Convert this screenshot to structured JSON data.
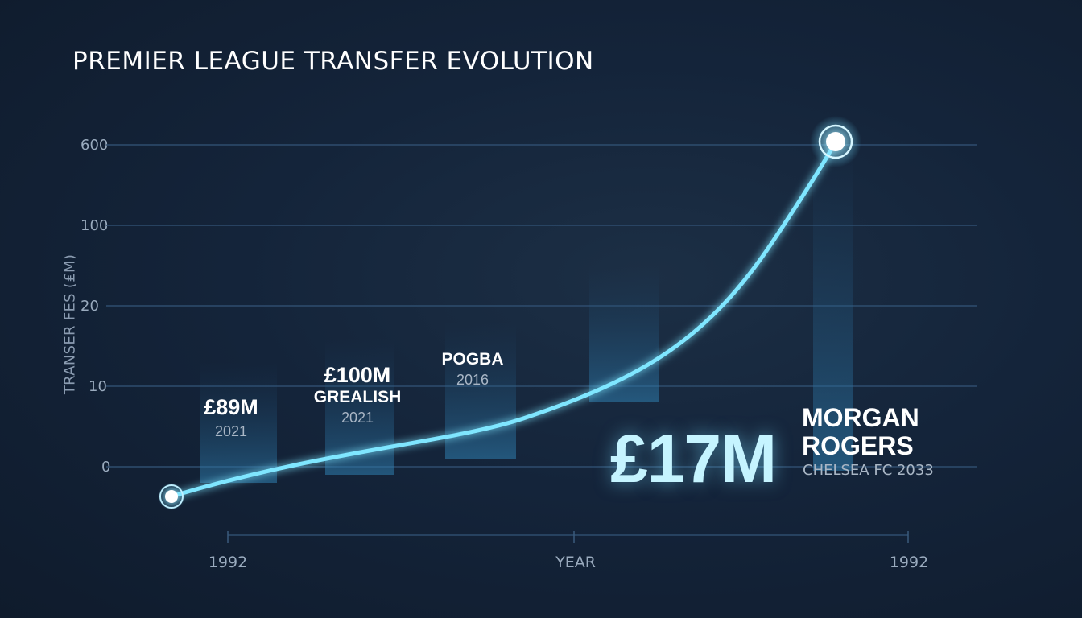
{
  "chart_data": {
    "type": "line",
    "title": "PREMIER LEAGUE TRANSFER EVOLUTION",
    "ylabel": "TRANSER FES (₤M)",
    "xlabel": "YEAR",
    "y_ticks": [
      "600",
      "100",
      "20",
      "10",
      "0"
    ],
    "x_ticks": [
      "1992",
      "1992"
    ],
    "grid": true,
    "line_color": "#7fe6ff",
    "bar_color": "#2f7fb0",
    "annotations": [
      {
        "fee": "£89M",
        "name": "",
        "year": "2021"
      },
      {
        "fee": "£100M",
        "name": "GREALISH",
        "year": "2021"
      },
      {
        "fee": "",
        "name": "POGBA",
        "year": "2016"
      }
    ],
    "highlight": {
      "fee": "£17M",
      "name_line1": "MORGAN",
      "name_line2": "ROGERS",
      "subtitle": "CHELSEA FC 2033"
    }
  }
}
